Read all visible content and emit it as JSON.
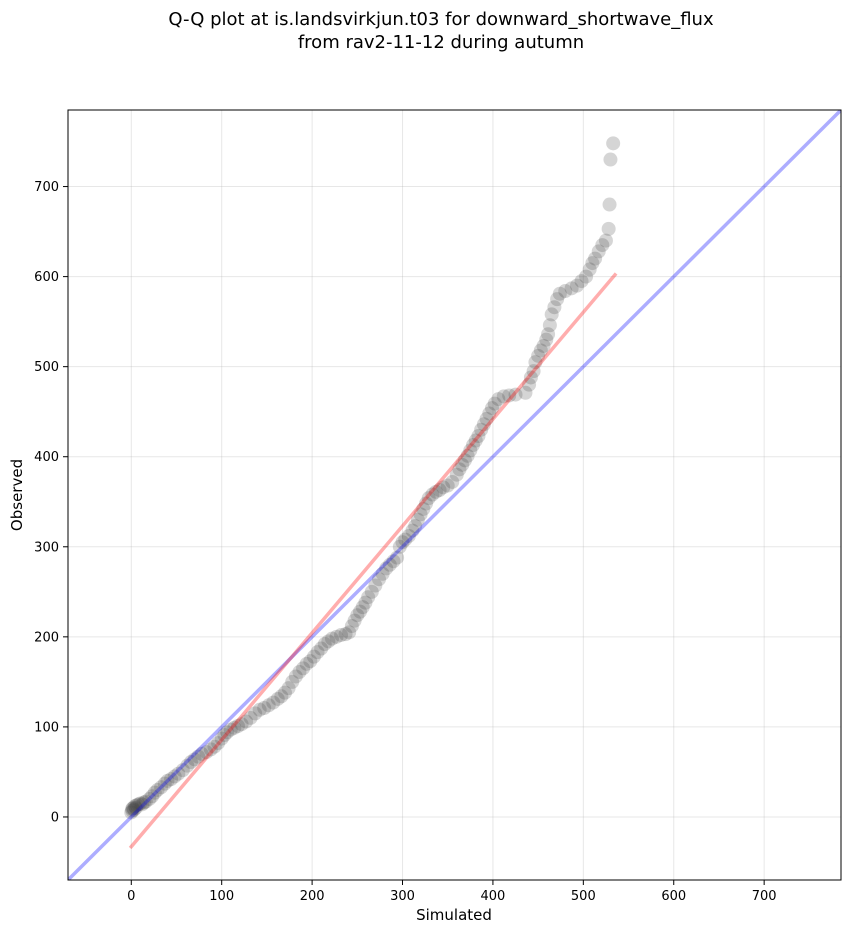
{
  "chart_data": {
    "type": "scatter",
    "title": "Q-Q plot at is.landsvirkjun.t03 for downward_shortwave_flux\nfrom rav2-11-12 during autumn",
    "title_lines": [
      "Q-Q plot at is.landsvirkjun.t03 for downward_shortwave_flux",
      "from rav2-11-12 during autumn"
    ],
    "xlabel": "Simulated",
    "ylabel": "Observed",
    "xlim": [
      -70,
      785
    ],
    "ylim": [
      -70,
      785
    ],
    "xticks": [
      0,
      100,
      200,
      300,
      400,
      500,
      600,
      700
    ],
    "yticks": [
      0,
      100,
      200,
      300,
      400,
      500,
      600,
      700
    ],
    "grid": true,
    "legend": "none",
    "colors": {
      "points": "#404040",
      "one_to_one_line": "#0000ff",
      "fit_line": "#ff0000"
    },
    "reference_lines": [
      {
        "kind": "one-to-one",
        "x": [
          -70,
          785
        ],
        "y": [
          -70,
          785
        ],
        "color": "#0000ff"
      },
      {
        "kind": "fit",
        "x": [
          0,
          535
        ],
        "y": [
          -33,
          602
        ],
        "color": "#ff0000"
      }
    ],
    "points": [
      [
        0,
        5
      ],
      [
        1,
        7
      ],
      [
        1,
        9
      ],
      [
        2,
        10
      ],
      [
        3,
        8
      ],
      [
        4,
        12
      ],
      [
        5,
        10
      ],
      [
        6,
        13
      ],
      [
        8,
        14
      ],
      [
        10,
        15
      ],
      [
        12,
        14
      ],
      [
        14,
        16
      ],
      [
        16,
        17
      ],
      [
        20,
        20
      ],
      [
        23,
        23
      ],
      [
        26,
        27
      ],
      [
        29,
        30
      ],
      [
        33,
        33
      ],
      [
        37,
        37
      ],
      [
        40,
        40
      ],
      [
        44,
        42
      ],
      [
        48,
        45
      ],
      [
        52,
        48
      ],
      [
        57,
        52
      ],
      [
        62,
        57
      ],
      [
        66,
        61
      ],
      [
        70,
        64
      ],
      [
        74,
        67
      ],
      [
        78,
        70
      ],
      [
        83,
        72
      ],
      [
        88,
        75
      ],
      [
        92,
        78
      ],
      [
        96,
        82
      ],
      [
        100,
        87
      ],
      [
        103,
        91
      ],
      [
        106,
        94
      ],
      [
        110,
        97
      ],
      [
        114,
        99
      ],
      [
        118,
        101
      ],
      [
        122,
        103
      ],
      [
        127,
        106
      ],
      [
        132,
        110
      ],
      [
        137,
        115
      ],
      [
        142,
        119
      ],
      [
        147,
        121
      ],
      [
        152,
        124
      ],
      [
        157,
        127
      ],
      [
        162,
        131
      ],
      [
        166,
        134
      ],
      [
        170,
        138
      ],
      [
        174,
        143
      ],
      [
        178,
        150
      ],
      [
        182,
        156
      ],
      [
        186,
        161
      ],
      [
        190,
        165
      ],
      [
        194,
        170
      ],
      [
        198,
        173
      ],
      [
        202,
        178
      ],
      [
        206,
        183
      ],
      [
        210,
        187
      ],
      [
        214,
        192
      ],
      [
        218,
        195
      ],
      [
        222,
        198
      ],
      [
        227,
        200
      ],
      [
        232,
        202
      ],
      [
        237,
        203
      ],
      [
        241,
        205
      ],
      [
        244,
        212
      ],
      [
        247,
        218
      ],
      [
        250,
        224
      ],
      [
        253,
        228
      ],
      [
        256,
        233
      ],
      [
        259,
        238
      ],
      [
        262,
        244
      ],
      [
        266,
        250
      ],
      [
        270,
        257
      ],
      [
        274,
        264
      ],
      [
        278,
        270
      ],
      [
        282,
        276
      ],
      [
        286,
        280
      ],
      [
        290,
        284
      ],
      [
        294,
        288
      ],
      [
        297,
        300
      ],
      [
        300,
        305
      ],
      [
        303,
        308
      ],
      [
        307,
        312
      ],
      [
        311,
        318
      ],
      [
        314,
        323
      ],
      [
        317,
        330
      ],
      [
        320,
        336
      ],
      [
        323,
        342
      ],
      [
        326,
        348
      ],
      [
        329,
        354
      ],
      [
        333,
        358
      ],
      [
        337,
        361
      ],
      [
        341,
        363
      ],
      [
        345,
        366
      ],
      [
        350,
        368
      ],
      [
        355,
        372
      ],
      [
        360,
        380
      ],
      [
        363,
        386
      ],
      [
        366,
        391
      ],
      [
        369,
        396
      ],
      [
        372,
        401
      ],
      [
        375,
        407
      ],
      [
        378,
        413
      ],
      [
        381,
        418
      ],
      [
        384,
        423
      ],
      [
        387,
        430
      ],
      [
        390,
        436
      ],
      [
        393,
        442
      ],
      [
        396,
        448
      ],
      [
        399,
        454
      ],
      [
        402,
        459
      ],
      [
        406,
        464
      ],
      [
        412,
        467
      ],
      [
        418,
        468
      ],
      [
        425,
        469
      ],
      [
        436,
        471
      ],
      [
        440,
        480
      ],
      [
        442,
        488
      ],
      [
        445,
        495
      ],
      [
        447,
        505
      ],
      [
        450,
        512
      ],
      [
        453,
        518
      ],
      [
        456,
        523
      ],
      [
        459,
        530
      ],
      [
        461,
        536
      ],
      [
        463,
        546
      ],
      [
        465,
        558
      ],
      [
        468,
        566
      ],
      [
        471,
        575
      ],
      [
        474,
        581
      ],
      [
        480,
        584
      ],
      [
        487,
        587
      ],
      [
        493,
        590
      ],
      [
        498,
        595
      ],
      [
        503,
        600
      ],
      [
        507,
        608
      ],
      [
        510,
        615
      ],
      [
        513,
        620
      ],
      [
        517,
        628
      ],
      [
        521,
        635
      ],
      [
        525,
        640
      ],
      [
        528,
        653
      ],
      [
        529,
        680
      ],
      [
        530,
        730
      ],
      [
        533,
        748
      ]
    ]
  }
}
